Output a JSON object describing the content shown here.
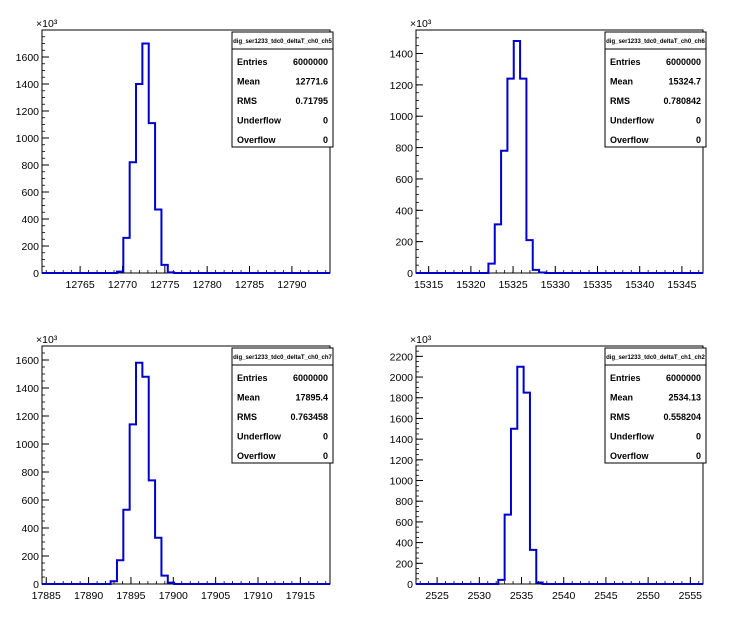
{
  "stats_labels": {
    "entries": "Entries",
    "mean": "Mean",
    "rms": "RMS",
    "underflow": "Underflow",
    "overflow": "Overflow"
  },
  "colors": {
    "histogram_line": "#0000cc",
    "axis": "#000000",
    "background": "#ffffff"
  },
  "chart_data": [
    {
      "type": "histogram",
      "title": "dig_ser1233_tdc0_deltaT_ch0_ch5",
      "y_exponent_label": "×10³",
      "xlim": [
        12760.5,
        12794.5
      ],
      "ylim": [
        0,
        1800
      ],
      "xticks": [
        12765,
        12770,
        12775,
        12780,
        12785,
        12790
      ],
      "yticks": [
        0,
        200,
        400,
        600,
        800,
        1000,
        1200,
        1400,
        1600
      ],
      "bin_width": 0.75,
      "bins_start": 12769.35,
      "bin_values": [
        10,
        260,
        820,
        1400,
        1700,
        1110,
        470,
        60,
        5
      ],
      "stats": {
        "entries": "6000000",
        "mean": "12771.6",
        "rms": "0.71795",
        "underflow": "0",
        "overflow": "0"
      }
    },
    {
      "type": "histogram",
      "title": "dig_ser1233_tdc0_deltaT_ch0_ch6",
      "y_exponent_label": "×10³",
      "xlim": [
        15313.5,
        15347.5
      ],
      "ylim": [
        0,
        1550
      ],
      "xticks": [
        15315,
        15320,
        15325,
        15330,
        15335,
        15340,
        15345
      ],
      "yticks": [
        0,
        200,
        400,
        600,
        800,
        1000,
        1200,
        1400
      ],
      "bin_width": 0.75,
      "bins_start": 15322.08,
      "bin_values": [
        60,
        310,
        780,
        1240,
        1480,
        1240,
        210,
        20,
        3
      ],
      "stats": {
        "entries": "6000000",
        "mean": "15324.7",
        "rms": "0.780842",
        "underflow": "0",
        "overflow": "0"
      }
    },
    {
      "type": "histogram",
      "title": "dig_ser1233_tdc0_deltaT_ch0_ch7",
      "y_exponent_label": "×10³",
      "xlim": [
        17884.5,
        17918.5
      ],
      "ylim": [
        0,
        1700
      ],
      "xticks": [
        17885,
        17890,
        17895,
        17900,
        17905,
        17910,
        17915
      ],
      "yticks": [
        0,
        200,
        400,
        600,
        800,
        1000,
        1200,
        1400,
        1600
      ],
      "bin_width": 0.75,
      "bins_start": 17892.6,
      "bin_values": [
        20,
        170,
        530,
        1140,
        1580,
        1480,
        740,
        330,
        60,
        10
      ],
      "stats": {
        "entries": "6000000",
        "mean": "17895.4",
        "rms": "0.763458",
        "underflow": "0",
        "overflow": "0"
      }
    },
    {
      "type": "histogram",
      "title": "dig_ser1233_tdc0_deltaT_ch1_ch2",
      "y_exponent_label": "×10³",
      "xlim": [
        2522.5,
        2556.5
      ],
      "ylim": [
        0,
        2300
      ],
      "xticks": [
        2525,
        2530,
        2535,
        2540,
        2545,
        2550,
        2555
      ],
      "yticks": [
        0,
        200,
        400,
        600,
        800,
        1000,
        1200,
        1400,
        1600,
        1800,
        2000,
        2200
      ],
      "bin_width": 0.75,
      "bins_start": 2532.25,
      "bin_values": [
        40,
        670,
        1500,
        2100,
        1850,
        330,
        15
      ],
      "stats": {
        "entries": "6000000",
        "mean": "2534.13",
        "rms": "0.558204",
        "underflow": "0",
        "overflow": "0"
      }
    }
  ]
}
